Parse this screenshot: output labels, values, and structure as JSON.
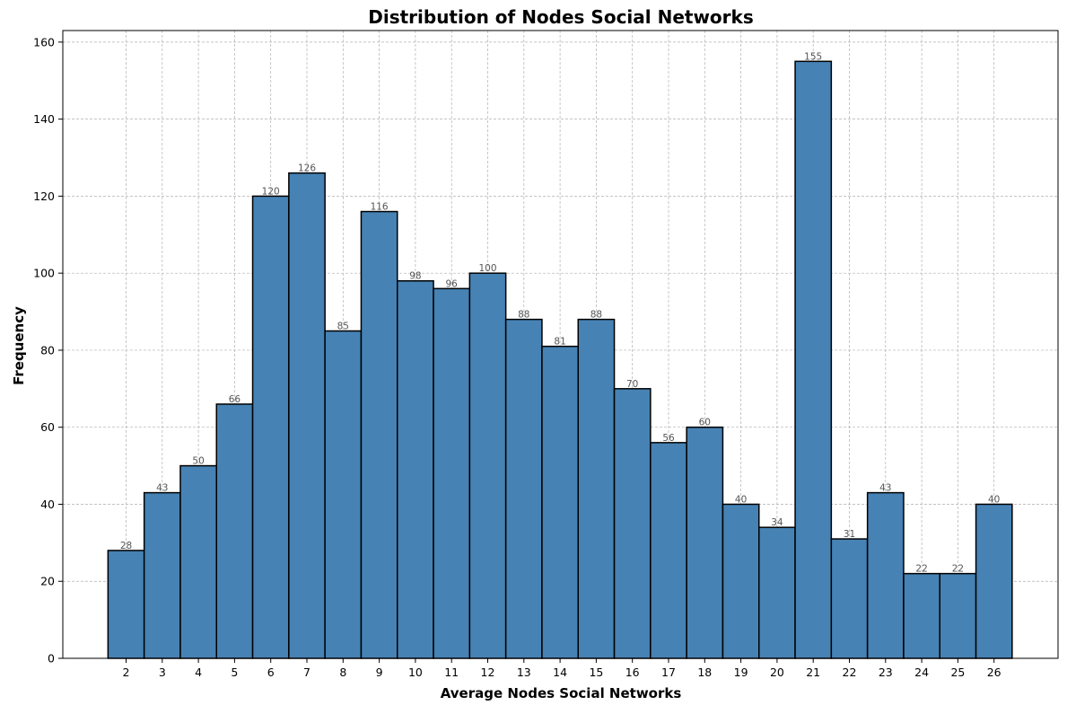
{
  "chart_data": {
    "type": "bar",
    "title": "Distribution of Nodes Social Networks",
    "xlabel": "Average Nodes Social Networks",
    "ylabel": "Frequency",
    "categories": [
      "2",
      "3",
      "4",
      "5",
      "6",
      "7",
      "8",
      "9",
      "10",
      "11",
      "12",
      "13",
      "14",
      "15",
      "16",
      "17",
      "18",
      "19",
      "20",
      "21",
      "22",
      "23",
      "24",
      "25",
      "26"
    ],
    "values": [
      28,
      43,
      50,
      66,
      120,
      126,
      85,
      116,
      98,
      96,
      100,
      88,
      81,
      88,
      70,
      56,
      60,
      40,
      34,
      155,
      31,
      43,
      22,
      22,
      40
    ],
    "ylim": [
      0,
      163
    ],
    "yticks": [
      0,
      20,
      40,
      60,
      80,
      100,
      120,
      140,
      160
    ],
    "grid": true,
    "colors": {
      "bar": "#4682b4",
      "edge": "#000000",
      "grid": "#b0b0b0",
      "data_label": "#555555"
    }
  }
}
